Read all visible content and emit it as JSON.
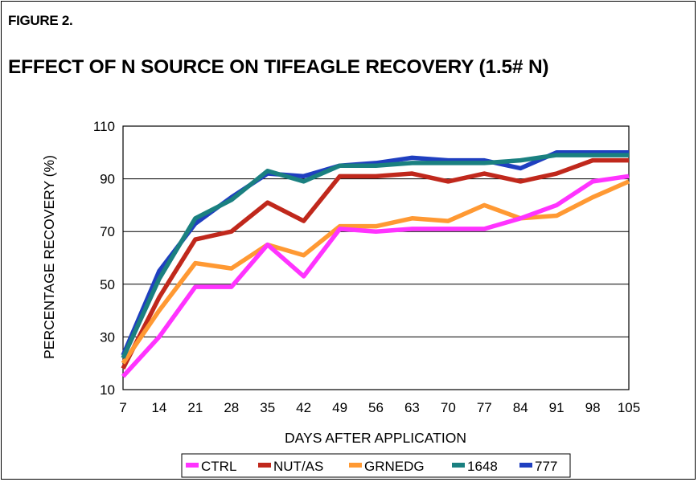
{
  "figure_label": "FIGURE 2.",
  "chart_data": {
    "type": "line",
    "title": "EFFECT OF N SOURCE ON TIFEAGLE RECOVERY (1.5# N)",
    "xlabel": "DAYS AFTER APPLICATION",
    "ylabel": "PERCENTAGE RECOVERY (%)",
    "x": [
      7,
      14,
      21,
      28,
      35,
      42,
      49,
      56,
      63,
      70,
      77,
      84,
      91,
      98,
      105
    ],
    "ylim": [
      10,
      110
    ],
    "yticks": [
      10,
      30,
      50,
      70,
      90,
      110
    ],
    "grid": true,
    "legend_position": "bottom",
    "series": [
      {
        "name": "CTRL",
        "color": "#ff33ff",
        "values": [
          15,
          30,
          49,
          49,
          65,
          53,
          71,
          70,
          71,
          71,
          71,
          75,
          80,
          89,
          91
        ]
      },
      {
        "name": "NUT/AS",
        "color": "#c0281c",
        "values": [
          18,
          45,
          67,
          70,
          81,
          74,
          91,
          91,
          92,
          89,
          92,
          89,
          92,
          97,
          97
        ]
      },
      {
        "name": "GRNEDG",
        "color": "#ff9933",
        "values": [
          20,
          40,
          58,
          56,
          65,
          61,
          72,
          72,
          75,
          74,
          80,
          75,
          76,
          83,
          89
        ]
      },
      {
        "name": "1648",
        "color": "#1a8080",
        "values": [
          22,
          52,
          75,
          82,
          93,
          89,
          95,
          95,
          96,
          96,
          96,
          97,
          99,
          99,
          99
        ]
      },
      {
        "name": "777",
        "color": "#1f3fc0",
        "values": [
          23,
          55,
          73,
          83,
          92,
          91,
          95,
          96,
          98,
          97,
          97,
          94,
          100,
          100,
          100
        ]
      }
    ]
  }
}
